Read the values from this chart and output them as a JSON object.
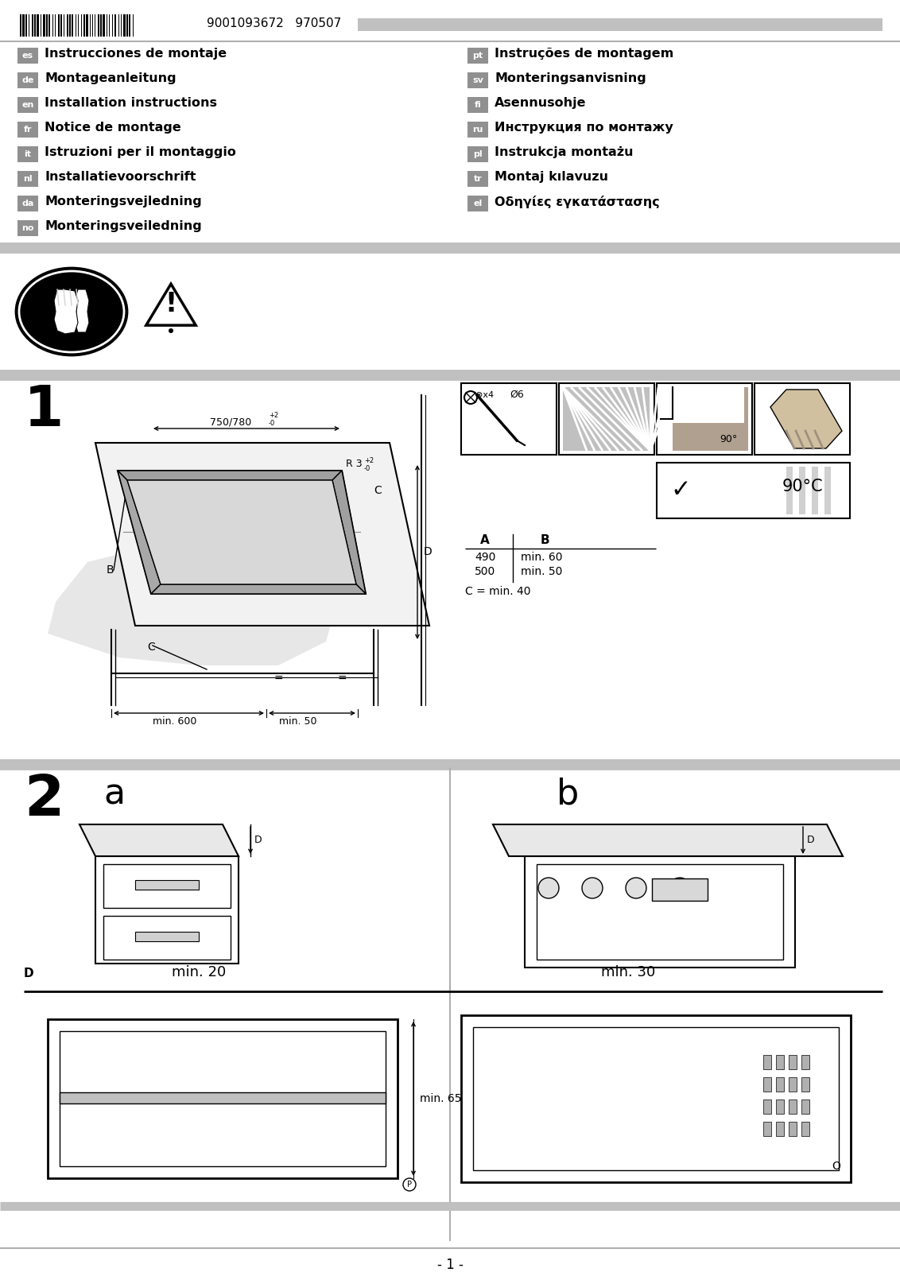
{
  "bg_color": "#ffffff",
  "gray_bar_color": "#c0c0c0",
  "lang_bg_dark": "#909090",
  "lang_bg_light": "#b8b8b8",
  "barcode_text": "9001093672   970507",
  "left_langs": [
    [
      "es",
      "Instrucciones de montaje"
    ],
    [
      "de",
      "Montageanleitung"
    ],
    [
      "en",
      "Installation instructions"
    ],
    [
      "fr",
      "Notice de montage"
    ],
    [
      "it",
      "Istruzioni per il montaggio"
    ],
    [
      "nl",
      "Installatievoorschrift"
    ],
    [
      "da",
      "Monteringsvejledning"
    ],
    [
      "no",
      "Monteringsveiledning"
    ]
  ],
  "right_langs": [
    [
      "pt",
      "Instruções de montagem"
    ],
    [
      "sv",
      "Monteringsanvisning"
    ],
    [
      "fi",
      "Asennusohje"
    ],
    [
      "ru",
      "Инструкция по монтажу"
    ],
    [
      "pl",
      "Instrukcja montażu"
    ],
    [
      "tr",
      "Montaj kılavuzu"
    ],
    [
      "el",
      "Οδηγίες εγκατάστασης"
    ]
  ],
  "page_number": "- 1 -"
}
